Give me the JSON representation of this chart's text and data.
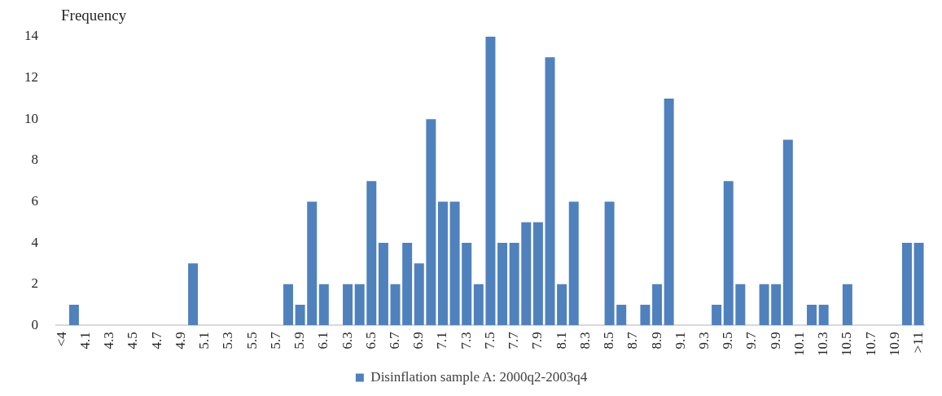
{
  "chart_data": {
    "type": "bar",
    "ylabel": "Frequency",
    "categories": [
      "<4",
      null,
      "4.1",
      null,
      "4.3",
      null,
      "4.5",
      null,
      "4.7",
      null,
      "4.9",
      null,
      "5.1",
      null,
      "5.3",
      null,
      "5.5",
      null,
      "5.7",
      null,
      "5.9",
      null,
      "6.1",
      null,
      "6.3",
      null,
      "6.5",
      null,
      "6.7",
      null,
      "6.9",
      null,
      "7.1",
      null,
      "7.3",
      null,
      "7.5",
      null,
      "7.7",
      null,
      "7.9",
      null,
      "8.1",
      null,
      "8.3",
      null,
      "8.5",
      null,
      "8.7",
      null,
      "8.9",
      null,
      "9.1",
      null,
      "9.3",
      null,
      "9.5",
      null,
      "9.7",
      null,
      "9.9",
      null,
      "10.1",
      null,
      "10.3",
      null,
      "10.5",
      null,
      "10.7",
      null,
      "10.9",
      null,
      ">11"
    ],
    "series": [
      {
        "name": "Disinflation sample A: 2000q2-2003q4",
        "color": "#4f81bd",
        "values": [
          0,
          1,
          0,
          0,
          0,
          0,
          0,
          0,
          0,
          0,
          0,
          3,
          0,
          0,
          0,
          0,
          0,
          0,
          0,
          2,
          1,
          6,
          2,
          0,
          2,
          2,
          7,
          4,
          2,
          4,
          3,
          10,
          6,
          6,
          4,
          2,
          14,
          4,
          4,
          5,
          5,
          13,
          2,
          6,
          0,
          0,
          6,
          1,
          0,
          1,
          2,
          11,
          0,
          0,
          0,
          1,
          7,
          2,
          0,
          2,
          2,
          9,
          0,
          1,
          1,
          0,
          2,
          0,
          0,
          0,
          0,
          4,
          4
        ]
      }
    ],
    "ylim": [
      0,
      14
    ],
    "yticks": [
      0,
      2,
      4,
      6,
      8,
      10,
      12,
      14
    ],
    "grid": false,
    "legend": "bottom"
  }
}
